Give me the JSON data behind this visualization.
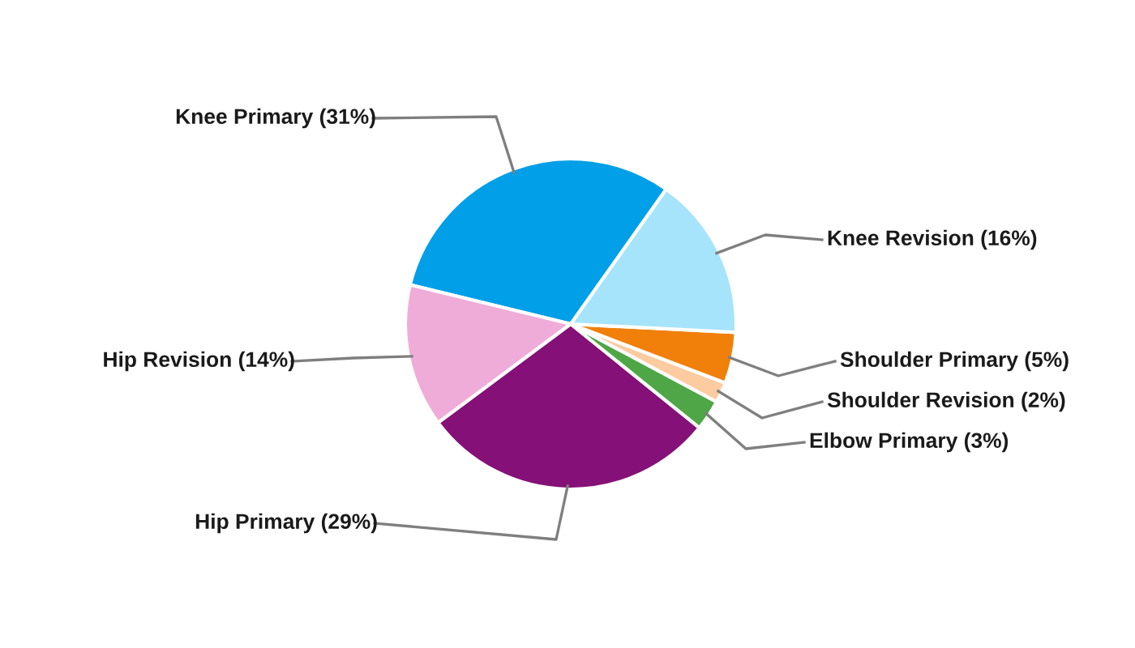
{
  "chart_data": {
    "type": "pie",
    "categories": [
      "Knee Primary (31%)",
      "Hip Revision (14%)",
      "Hip Primary (29%)",
      "Elbow Primary (3%)",
      "Shoulder Revision (2%)",
      "Shoulder Primary (5%)",
      "Knee Revision (16%)"
    ],
    "values": [
      31,
      14,
      29,
      3,
      2,
      5,
      16
    ],
    "colors": [
      "#009fe8",
      "#f0acd8",
      "#851077",
      "#4ea646",
      "#fdcba0",
      "#f0800a",
      "#a6e4fb"
    ],
    "legend": false
  }
}
